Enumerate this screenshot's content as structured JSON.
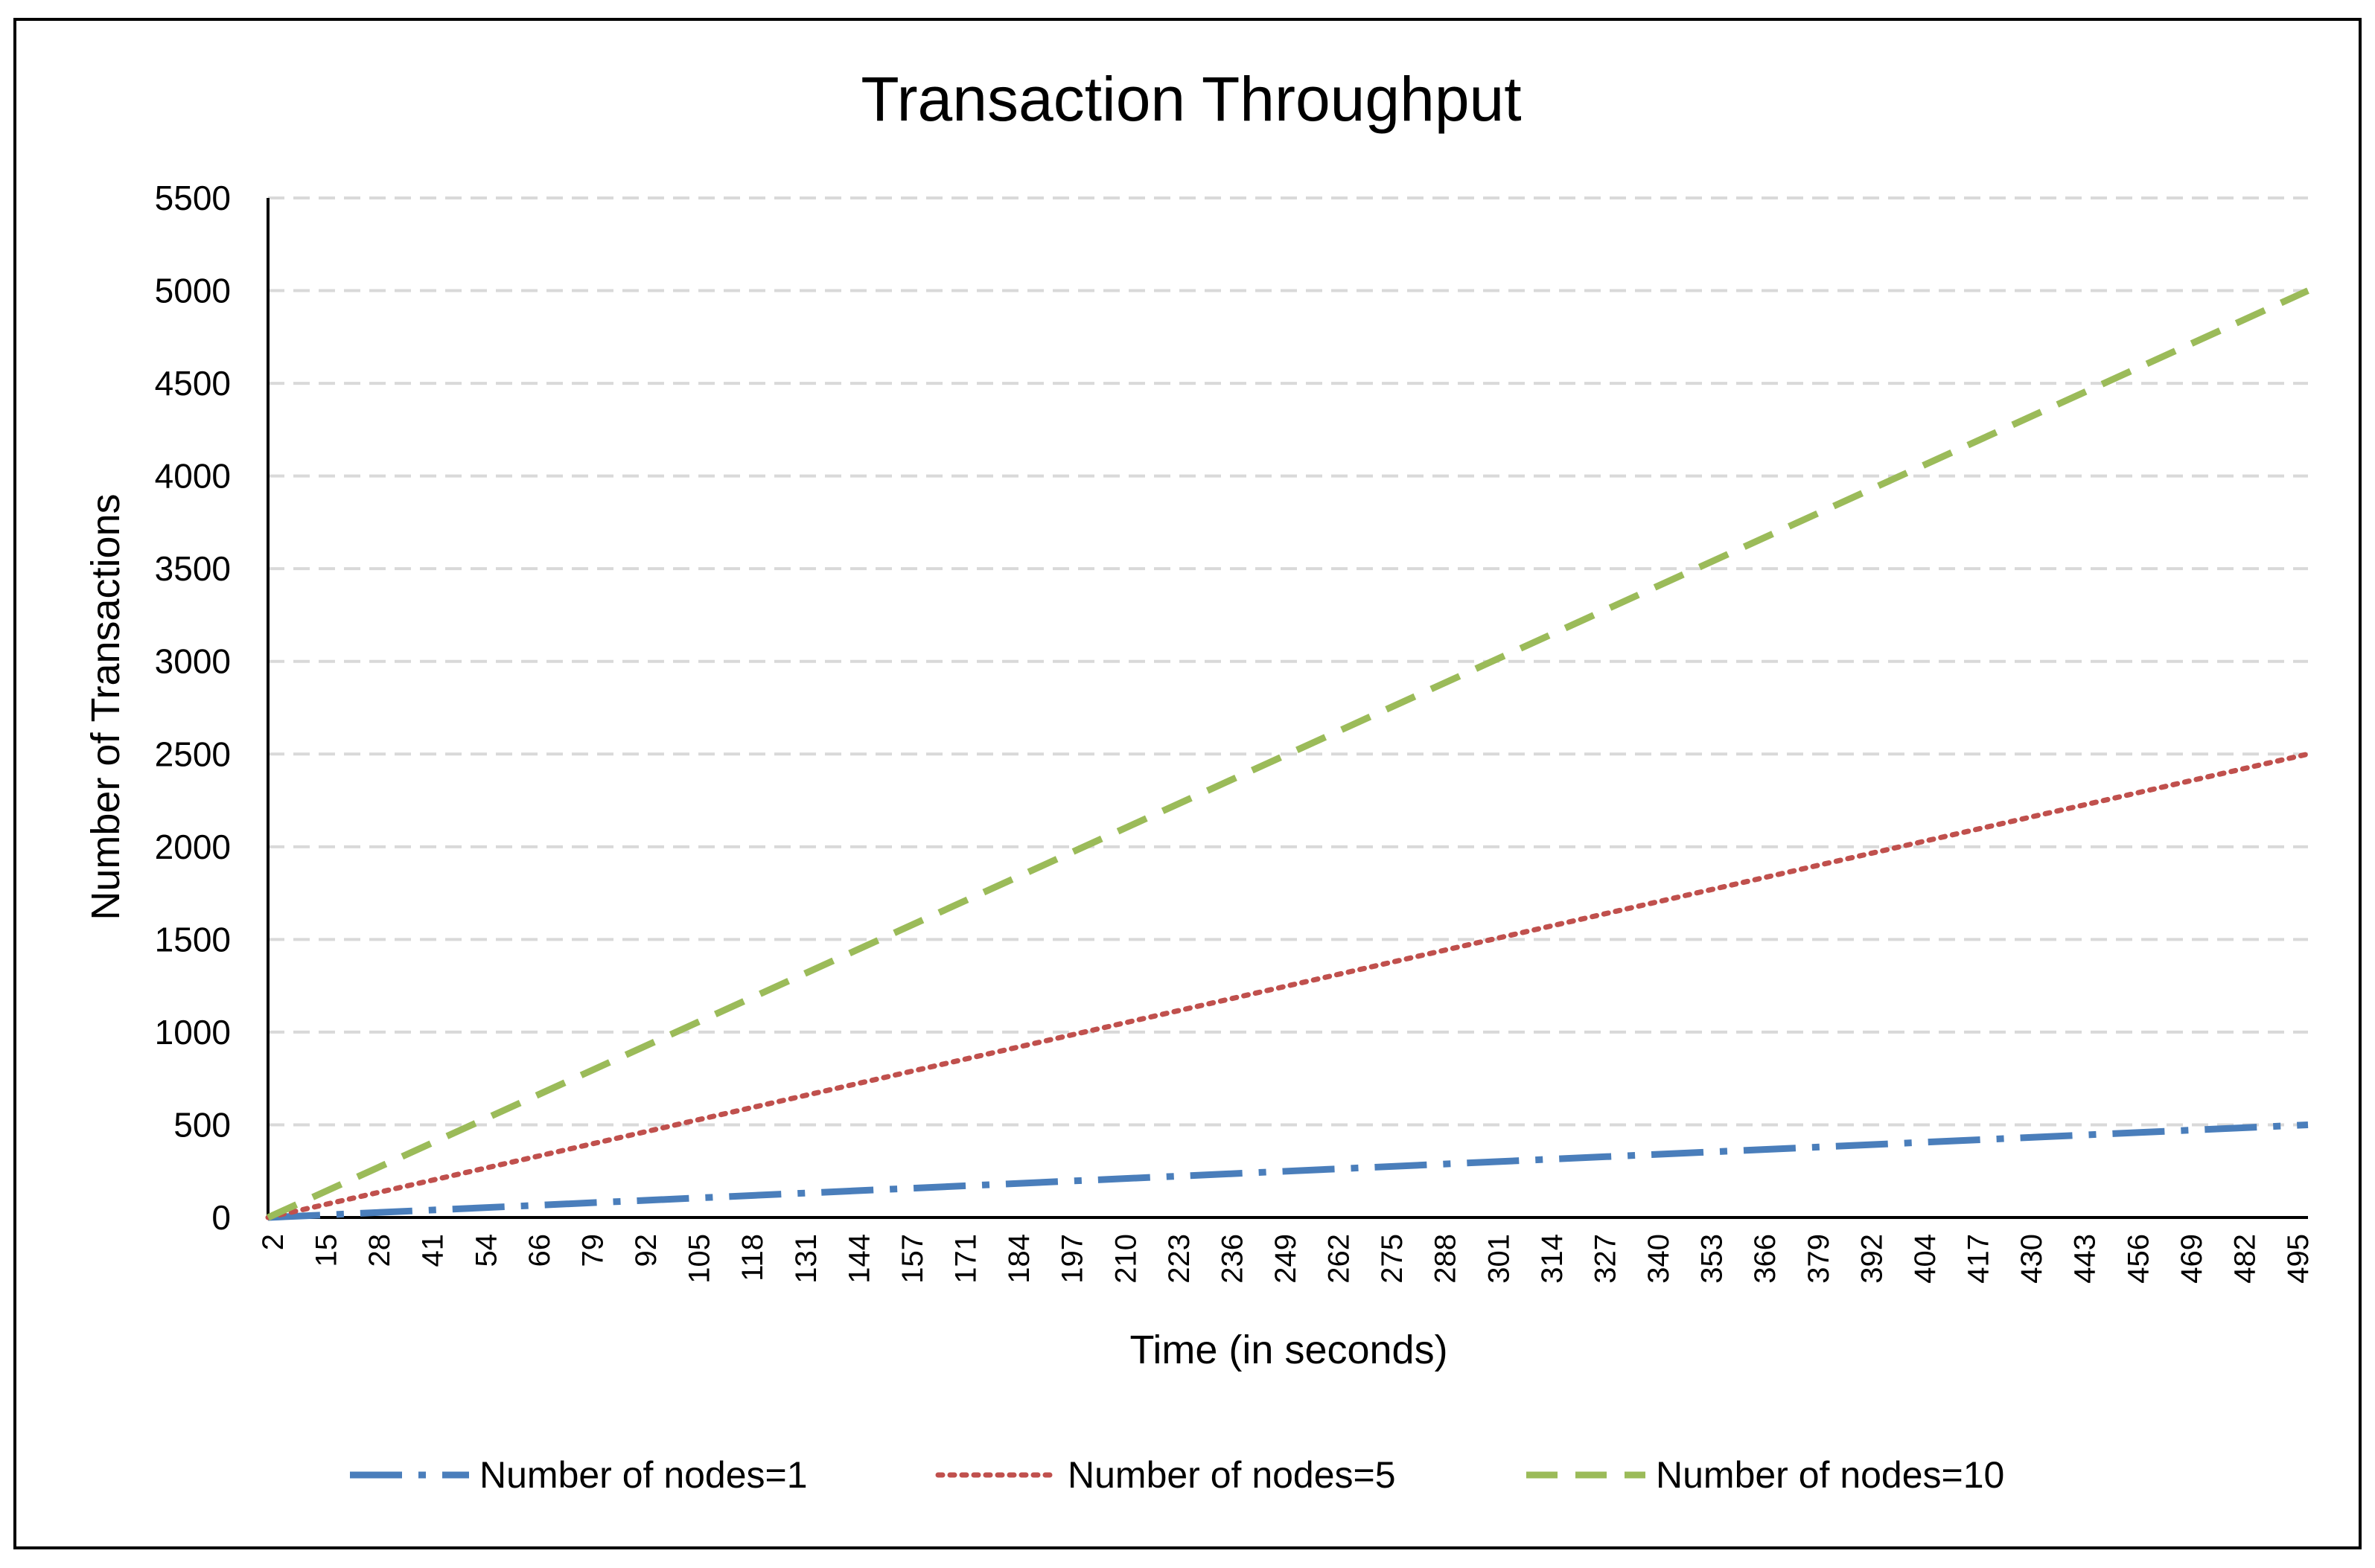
{
  "chart_data": {
    "type": "line",
    "title": "Transaction Throughput",
    "xlabel": "Time (in seconds)",
    "ylabel": "Number of Transactions",
    "xlim": [
      2,
      500
    ],
    "ylim": [
      0,
      5500
    ],
    "yticks": [
      0,
      500,
      1000,
      1500,
      2000,
      2500,
      3000,
      3500,
      4000,
      4500,
      5000,
      5500
    ],
    "xtick_labels": [
      "2",
      "15",
      "28",
      "41",
      "54",
      "66",
      "79",
      "92",
      "105",
      "118",
      "131",
      "144",
      "157",
      "171",
      "184",
      "197",
      "210",
      "223",
      "236",
      "249",
      "262",
      "275",
      "288",
      "301",
      "314",
      "327",
      "340",
      "353",
      "366",
      "379",
      "392",
      "404",
      "417",
      "430",
      "443",
      "456",
      "469",
      "482",
      "495"
    ],
    "grid": true,
    "legend_position": "bottom",
    "series": [
      {
        "name": "Number of nodes=1",
        "color": "#4a7ebb",
        "style": "dash-dot",
        "x": [
          2,
          500
        ],
        "values": [
          0,
          500
        ]
      },
      {
        "name": "Number of nodes=5",
        "color": "#c0504d",
        "style": "dotted",
        "x": [
          2,
          500
        ],
        "values": [
          0,
          2500
        ]
      },
      {
        "name": "Number of nodes=10",
        "color": "#9bbb59",
        "style": "dashed",
        "x": [
          2,
          500
        ],
        "values": [
          0,
          5000
        ]
      }
    ]
  }
}
